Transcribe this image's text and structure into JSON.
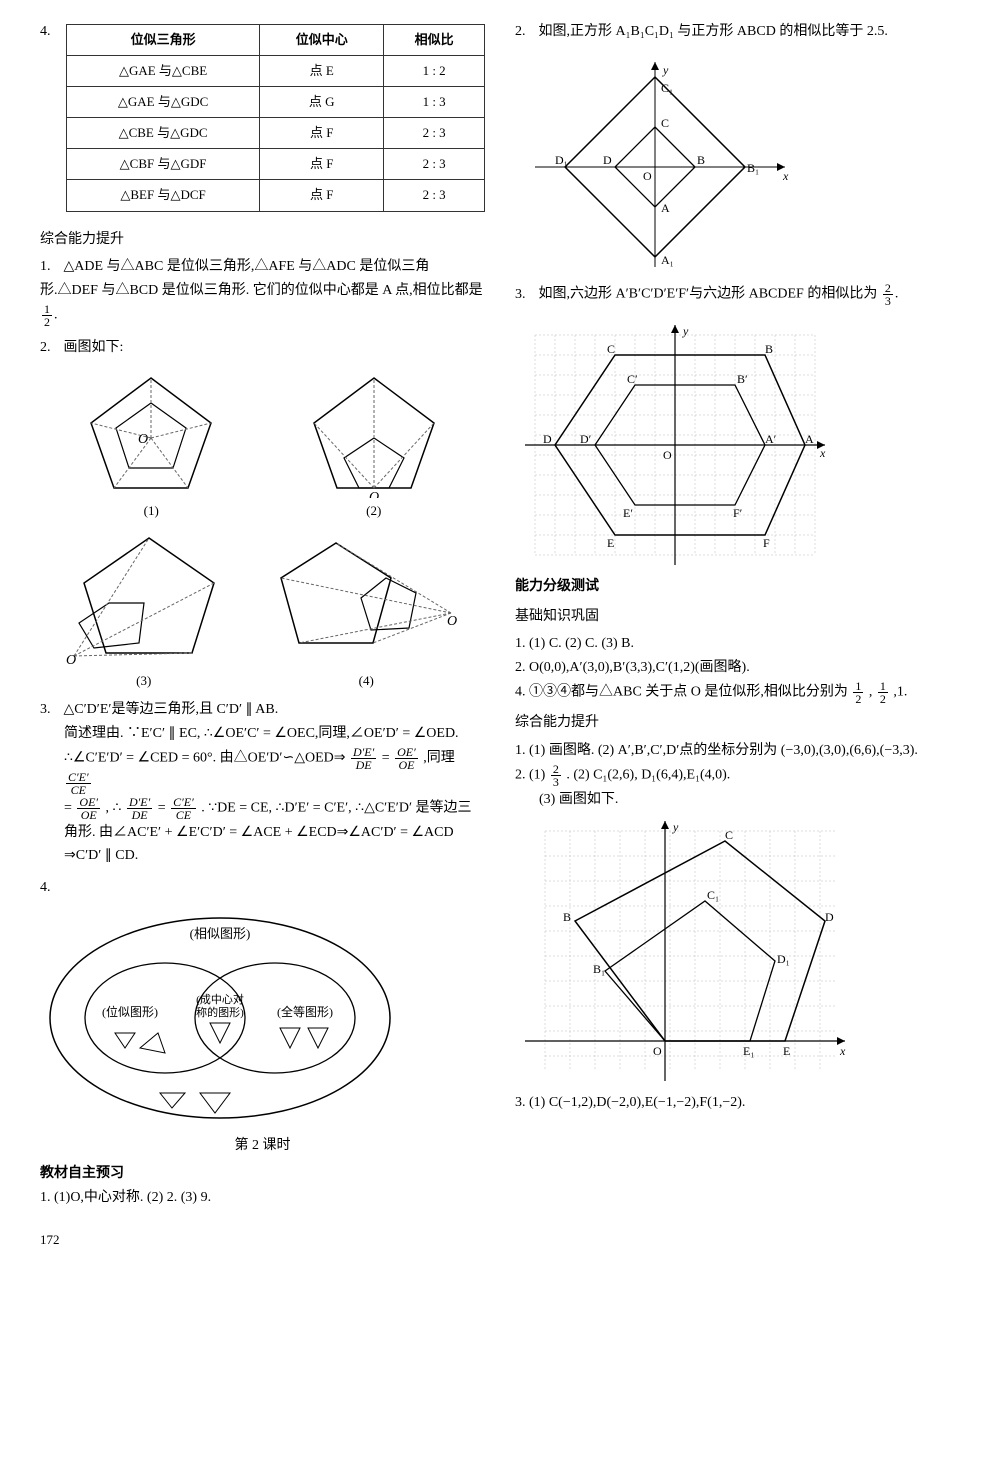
{
  "page_number": "172",
  "q4_table": {
    "headers": [
      "位似三角形",
      "位似中心",
      "相似比"
    ],
    "rows": [
      [
        "△GAE 与△CBE",
        "点 E",
        "1 : 2"
      ],
      [
        "△GAE 与△GDC",
        "点 G",
        "1 : 3"
      ],
      [
        "△CBE 与△GDC",
        "点 F",
        "2 : 3"
      ],
      [
        "△CBF 与△GDF",
        "点 F",
        "2 : 3"
      ],
      [
        "△BEF 与△DCF",
        "点 F",
        "2 : 3"
      ]
    ]
  },
  "left": {
    "section1_title": "综合能力提升",
    "q1": "△ADE 与△ABC 是位似三角形,△AFE 与△ADC 是位似三角形.△DEF 与△BCD 是位似三角形. 它们的位似中心都是 A 点,相位比都是",
    "q1_frac_num": "1",
    "q1_frac_den": "2",
    "q1_end": ".",
    "q2": "画图如下:",
    "fig_labels": [
      "(1)",
      "(2)",
      "(3)",
      "(4)"
    ],
    "q3_line1": "△C′D′E′是等边三角形,且 C′D′ ∥ AB.",
    "q3_line2": "简述理由. ∵E′C′ ∥ EC, ∴∠OE′C′ = ∠OEC,同理,∠OE′D′ = ∠OED. ∴∠C′E′D′ = ∠CED = 60°. 由△OE′D′∽△OED⇒",
    "q3_f1n": "D′E′",
    "q3_f1d": "DE",
    "q3_eq": "=",
    "q3_f2n": "OE′",
    "q3_f2d": "OE",
    "q3_mid": ",同理",
    "q3_f3n": "C′E′",
    "q3_f3d": "CE",
    "q3_line3a": "=",
    "q3_f4n": "OE′",
    "q3_f4d": "OE",
    "q3_line3b": ", ∴",
    "q3_f5n": "D′E′",
    "q3_f5d": "DE",
    "q3_line3c": "=",
    "q3_f6n": "C′E′",
    "q3_f6d": "CE",
    "q3_line3d": ". ∵DE = CE, ∴D′E′ = C′E′, ∴△C′E′D′ 是等边三角形. 由∠AC′E′ + ∠E′C′D′ = ∠ACE + ∠ECD⇒∠AC′D′ = ∠ACD ⇒C′D′ ∥ CD.",
    "q4_num": "4.",
    "venn": {
      "outer": "(相似图形)",
      "left": "(位似图形)",
      "center_top": "(成中心对",
      "center_bot": "称的图形)",
      "right": "(全等图形)"
    },
    "lesson_title": "第 2 课时",
    "section2_title": "教材自主预习",
    "preview_q1": "1. (1)O,中心对称.  (2) 2.  (3) 9."
  },
  "right": {
    "q2_text": "如图,正方形 A₁B₁C₁D₁ 与正方形 ABCD 的相似比等于 2.5.",
    "sq_labels": {
      "C1": "C₁",
      "C": "C",
      "B1": "B₁",
      "B": "B",
      "D1": "D₁",
      "D": "D",
      "A": "A",
      "A1": "A₁",
      "O": "O",
      "x": "x",
      "y": "y"
    },
    "q3_text_a": "如图,六边形 A′B′C′D′E′F′与六边形 ABCDEF 的相似比为",
    "q3_frac_num": "2",
    "q3_frac_den": "3",
    "q3_end": ".",
    "hex_labels": {
      "C": "C",
      "B": "B",
      "Cp": "C′",
      "Bp": "B′",
      "D": "D",
      "Dp": "D′",
      "O": "O",
      "Ap": "A′",
      "A": "A",
      "Ep": "E′",
      "Fp": "F′",
      "E": "E",
      "F": "F",
      "x": "x",
      "y": "y"
    },
    "section3_title": "能力分级测试",
    "section3_sub1": "基础知识巩固",
    "base_q1": "1. (1) C.  (2) C.  (3) B.",
    "base_q2": "2. O(0,0),A′(3,0),B′(3,3),C′(1,2)(画图略).",
    "base_q4a": "4. ①③④都与△ABC 关于点 O 是位似形,相似比分别为",
    "base_q4_f1n": "1",
    "base_q4_f1d": "2",
    "base_q4_mid": ",",
    "base_q4_f2n": "1",
    "base_q4_f2d": "2",
    "base_q4_end": ",1.",
    "section3_sub2": "综合能力提升",
    "adv_q1": "1. (1) 画图略.  (2) A′,B′,C′,D′点的坐标分别为 (−3,0),(3,0),(6,6),(−3,3).",
    "adv_q2a": "2. (1) ",
    "adv_q2_fn": "2",
    "adv_q2_fd": "3",
    "adv_q2b": ".  (2) C₁(2,6), D₁(6,4),E₁(4,0).",
    "adv_q2c": "(3) 画图如下.",
    "pent_labels": {
      "C": "C",
      "C1": "C₁",
      "B": "B",
      "D": "D",
      "B1": "B₁",
      "D1": "D₁",
      "O": "O",
      "E1": "E₁",
      "E": "E",
      "x": "x",
      "y": "y"
    },
    "adv_q3": "3. (1) C(−1,2),D(−2,0),E(−1,−2),F(1,−2)."
  },
  "colors": {
    "line": "#000000",
    "dash": "#666666",
    "grid": "#aaaaaa"
  }
}
